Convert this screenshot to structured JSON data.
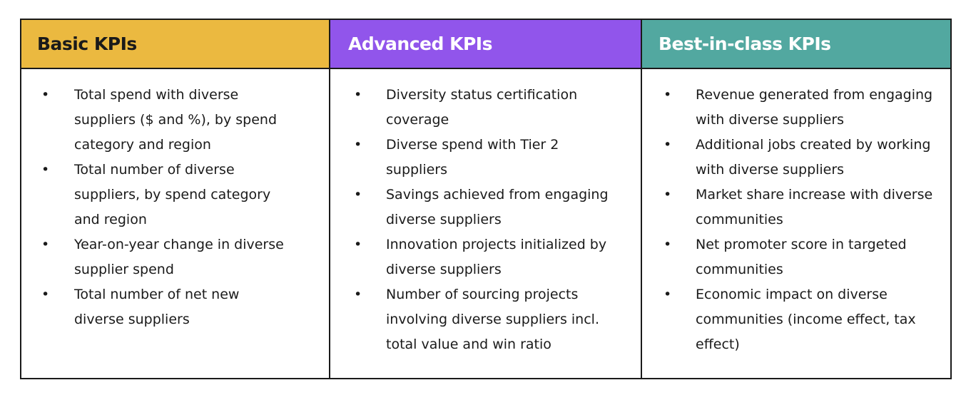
{
  "columns": [
    {
      "title": "Basic KPIs",
      "items": [
        "Total spend with diverse suppliers ($ and %), by spend category and region",
        "Total number of diverse suppliers, by spend category and region",
        "Year-on-year change in diverse supplier spend",
        "Total number of net new diverse suppliers"
      ]
    },
    {
      "title": "Advanced KPIs",
      "items": [
        "Diversity status certification coverage",
        "Diverse spend with Tier 2 suppliers",
        "Savings achieved from engaging diverse suppliers",
        "Innovation projects initialized by diverse suppliers",
        "Number of sourcing projects involving diverse suppliers incl. total value and win ratio"
      ]
    },
    {
      "title": "Best-in-class KPIs",
      "items": [
        "Revenue generated from engaging with diverse suppliers",
        "Additional jobs created by working with diverse suppliers",
        "Market share increase with diverse communities",
        "Net promoter score in targeted communities",
        "Economic impact on diverse communities (income effect, tax effect)"
      ]
    }
  ],
  "bullet_glyph": "•",
  "colors": {
    "basic_header": "#ebb940",
    "advanced_header": "#9155eb",
    "best_header": "#52a8a0",
    "border": "#1a1a1a"
  }
}
